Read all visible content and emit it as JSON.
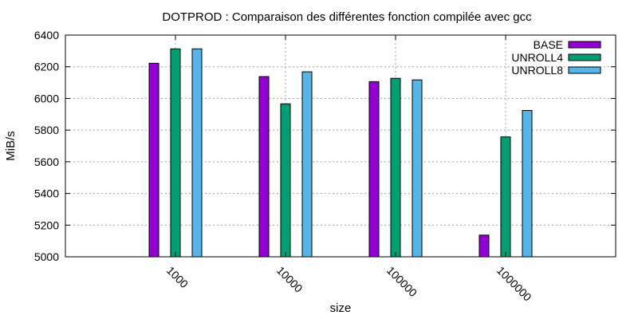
{
  "chart_data": {
    "type": "bar",
    "title": "DOTPROD : Comparaison des différentes fonction compilée avec gcc",
    "xlabel": "size",
    "ylabel": "MiB/s",
    "categories": [
      "1000",
      "10000",
      "100000",
      "1000000"
    ],
    "series": [
      {
        "name": "BASE",
        "color": "#9400d3",
        "values": [
          6222,
          6138,
          6106,
          5137
        ]
      },
      {
        "name": "UNROLL4",
        "color": "#009e73",
        "values": [
          6313,
          5966,
          6127,
          5757
        ]
      },
      {
        "name": "UNROLL8",
        "color": "#56b4e9",
        "values": [
          6313,
          6168,
          6117,
          5924
        ]
      }
    ],
    "ylim": [
      5000,
      6400
    ],
    "yticks": [
      5000,
      5200,
      5400,
      5600,
      5800,
      6000,
      6200,
      6400
    ],
    "grid": true,
    "legend": "top-right"
  }
}
